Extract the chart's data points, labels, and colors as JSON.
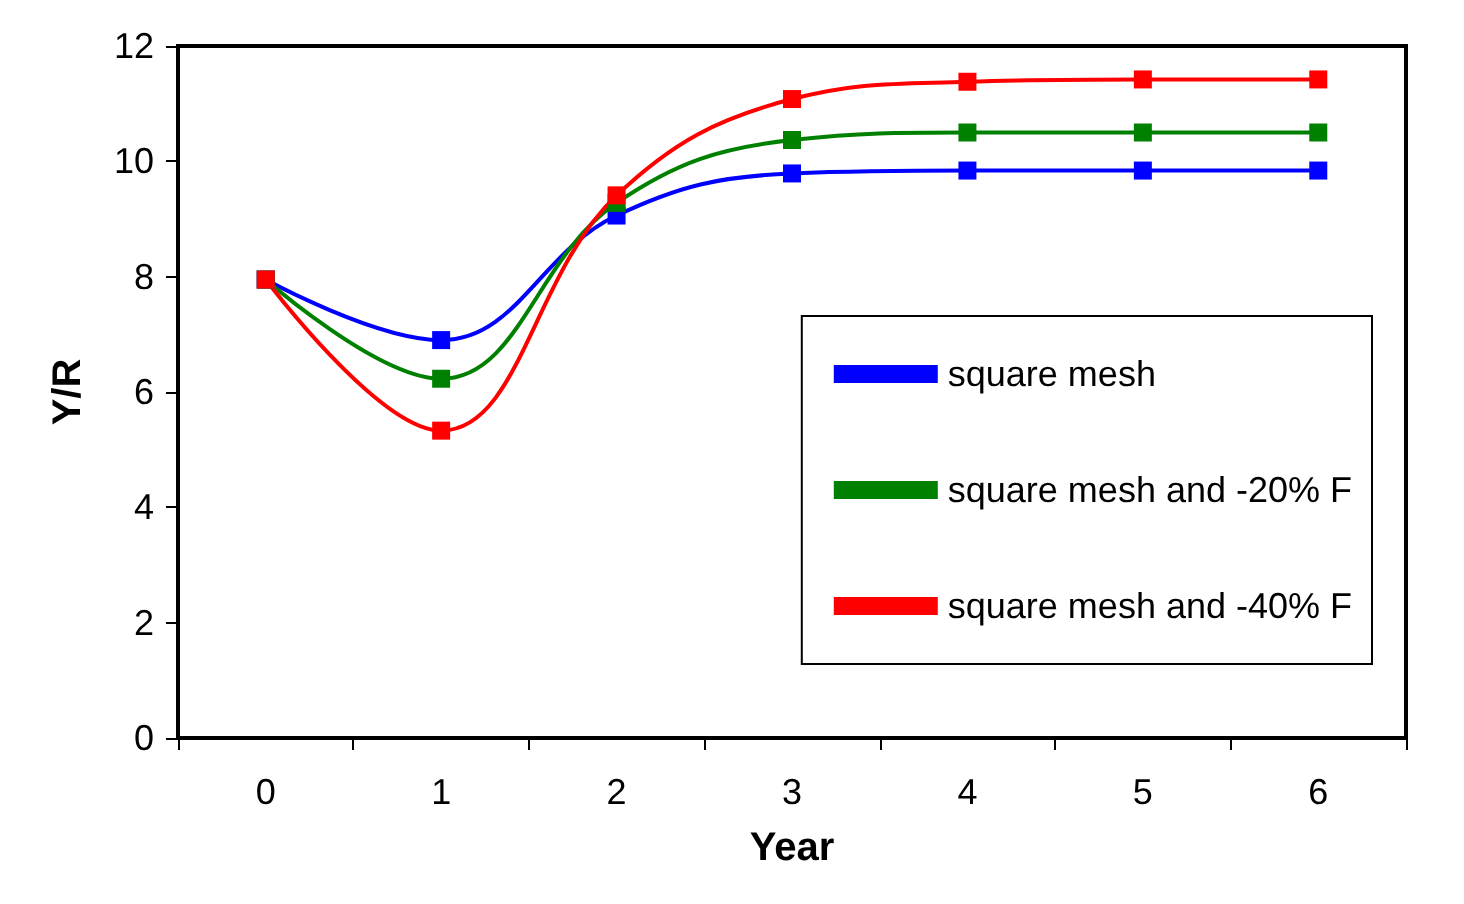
{
  "chart_data": {
    "type": "line",
    "xlabel": "Year",
    "ylabel": "Y/R",
    "categories": [
      "0",
      "1",
      "2",
      "3",
      "4",
      "5",
      "6"
    ],
    "series": [
      {
        "name": "square mesh",
        "color": "#0000ff",
        "values": [
          7.95,
          6.9,
          9.06,
          9.79,
          9.84,
          9.84,
          9.84
        ]
      },
      {
        "name": "square mesh and -20% F",
        "color": "#008000",
        "values": [
          7.95,
          6.23,
          9.28,
          10.37,
          10.5,
          10.5,
          10.5
        ]
      },
      {
        "name": "square mesh and -40% F",
        "color": "#ff0000",
        "values": [
          7.95,
          5.33,
          9.41,
          11.08,
          11.38,
          11.42,
          11.42
        ]
      }
    ],
    "ylim": [
      0,
      12
    ],
    "yticks": [
      0,
      2,
      4,
      6,
      8,
      10,
      12
    ],
    "grid": false,
    "legend": "right",
    "marker": "square",
    "line_style": "solid"
  }
}
